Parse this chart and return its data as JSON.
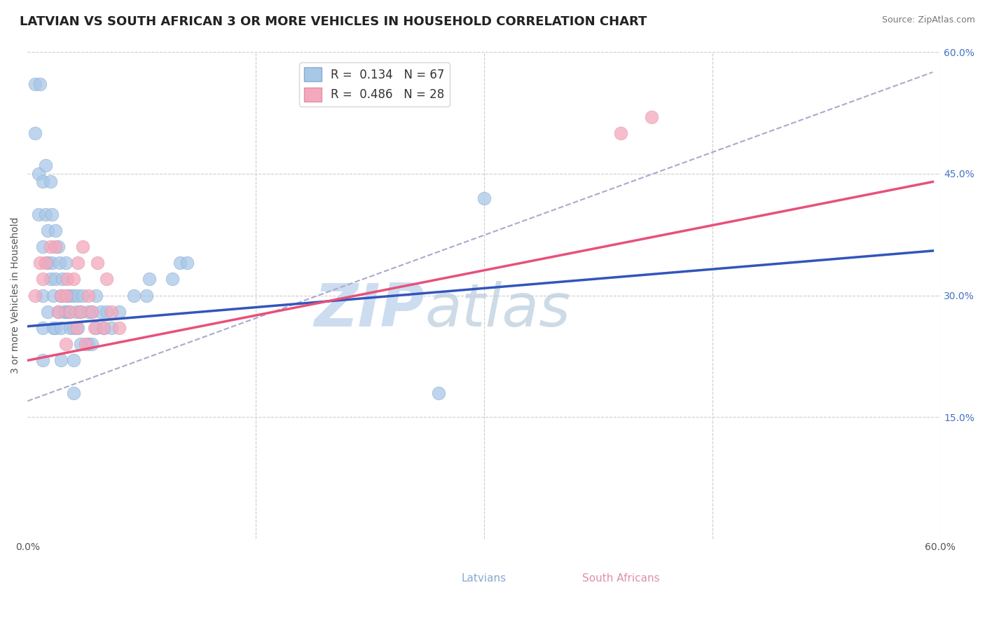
{
  "title": "LATVIAN VS SOUTH AFRICAN 3 OR MORE VEHICLES IN HOUSEHOLD CORRELATION CHART",
  "source": "Source: ZipAtlas.com",
  "ylabel": "3 or more Vehicles in Household",
  "xlim": [
    0.0,
    0.6
  ],
  "ylim": [
    0.0,
    0.6
  ],
  "r_latvian": 0.134,
  "n_latvian": 67,
  "r_south_african": 0.486,
  "n_south_african": 28,
  "color_latvian": "#a8c8e8",
  "color_south_african": "#f4a8bc",
  "color_latvian_line": "#3355bb",
  "color_south_african_line": "#e8507a",
  "color_dashed_line": "#aaaacc",
  "watermark_zip_color": "#ccddf0",
  "watermark_atlas_color": "#b8ccdd",
  "latvian_x": [
    0.005,
    0.005,
    0.007,
    0.007,
    0.008,
    0.01,
    0.01,
    0.01,
    0.01,
    0.01,
    0.012,
    0.012,
    0.013,
    0.013,
    0.013,
    0.015,
    0.015,
    0.016,
    0.016,
    0.017,
    0.017,
    0.018,
    0.018,
    0.018,
    0.02,
    0.02,
    0.021,
    0.022,
    0.022,
    0.022,
    0.023,
    0.024,
    0.025,
    0.025,
    0.026,
    0.027,
    0.028,
    0.028,
    0.03,
    0.03,
    0.03,
    0.03,
    0.032,
    0.033,
    0.033,
    0.035,
    0.035,
    0.036,
    0.04,
    0.04,
    0.042,
    0.042,
    0.045,
    0.045,
    0.048,
    0.05,
    0.052,
    0.055,
    0.06,
    0.07,
    0.078,
    0.08,
    0.095,
    0.1,
    0.105,
    0.27,
    0.3
  ],
  "latvian_y": [
    0.56,
    0.5,
    0.45,
    0.4,
    0.56,
    0.44,
    0.36,
    0.3,
    0.26,
    0.22,
    0.46,
    0.4,
    0.38,
    0.34,
    0.28,
    0.44,
    0.32,
    0.4,
    0.34,
    0.3,
    0.26,
    0.38,
    0.32,
    0.26,
    0.36,
    0.28,
    0.34,
    0.3,
    0.26,
    0.22,
    0.32,
    0.28,
    0.34,
    0.28,
    0.3,
    0.28,
    0.3,
    0.26,
    0.3,
    0.26,
    0.22,
    0.18,
    0.28,
    0.3,
    0.26,
    0.28,
    0.24,
    0.3,
    0.28,
    0.24,
    0.28,
    0.24,
    0.3,
    0.26,
    0.28,
    0.26,
    0.28,
    0.26,
    0.28,
    0.3,
    0.3,
    0.32,
    0.32,
    0.34,
    0.34,
    0.18,
    0.42
  ],
  "south_african_x": [
    0.005,
    0.008,
    0.01,
    0.012,
    0.015,
    0.018,
    0.02,
    0.022,
    0.025,
    0.025,
    0.026,
    0.028,
    0.03,
    0.032,
    0.033,
    0.035,
    0.036,
    0.038,
    0.04,
    0.042,
    0.044,
    0.046,
    0.05,
    0.052,
    0.055,
    0.06,
    0.39,
    0.41
  ],
  "south_african_y": [
    0.3,
    0.34,
    0.32,
    0.34,
    0.36,
    0.36,
    0.28,
    0.3,
    0.3,
    0.24,
    0.32,
    0.28,
    0.32,
    0.26,
    0.34,
    0.28,
    0.36,
    0.24,
    0.3,
    0.28,
    0.26,
    0.34,
    0.26,
    0.32,
    0.28,
    0.26,
    0.5,
    0.52
  ],
  "blue_line_x": [
    0.0,
    0.595
  ],
  "blue_line_y": [
    0.262,
    0.355
  ],
  "pink_line_x": [
    0.0,
    0.595
  ],
  "pink_line_y": [
    0.22,
    0.44
  ],
  "dashed_line_x": [
    0.0,
    0.595
  ],
  "dashed_line_y": [
    0.17,
    0.575
  ],
  "title_fontsize": 13,
  "axis_label_fontsize": 10,
  "tick_fontsize": 10,
  "legend_fontsize": 12
}
